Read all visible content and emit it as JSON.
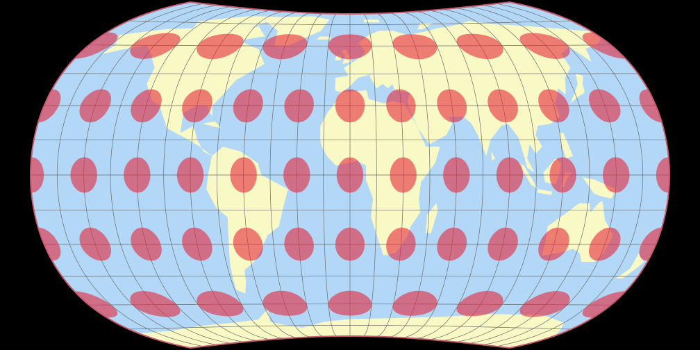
{
  "map": {
    "colors": {
      "background": "#000000",
      "ocean": "#b3d8f7",
      "land": "#f9f9c6",
      "graticule": "#6b6b6b",
      "indicatrix": "#e5283c",
      "rim": "#c85a6e"
    },
    "graticule_step_degrees": 15,
    "indicatrix_rows": [
      {
        "lat": 60,
        "lons": [
          -180,
          -135,
          -90,
          -45,
          0,
          45,
          90,
          135,
          180
        ]
      },
      {
        "lat": 30,
        "lons": [
          -180,
          -150,
          -120,
          -90,
          -60,
          -30,
          0,
          30,
          60,
          90,
          120,
          150,
          180
        ]
      },
      {
        "lat": 0,
        "lons": [
          -180,
          -150,
          -120,
          -90,
          -60,
          -30,
          0,
          30,
          60,
          90,
          120,
          150,
          180
        ]
      },
      {
        "lat": -30,
        "lons": [
          -180,
          -150,
          -120,
          -90,
          -60,
          -30,
          0,
          30,
          60,
          90,
          120,
          150,
          180
        ]
      },
      {
        "lat": -60,
        "lons": [
          -180,
          -135,
          -90,
          -45,
          0,
          45,
          90,
          135,
          180
        ]
      }
    ],
    "indicatrix_radius_degrees": 7.5
  }
}
